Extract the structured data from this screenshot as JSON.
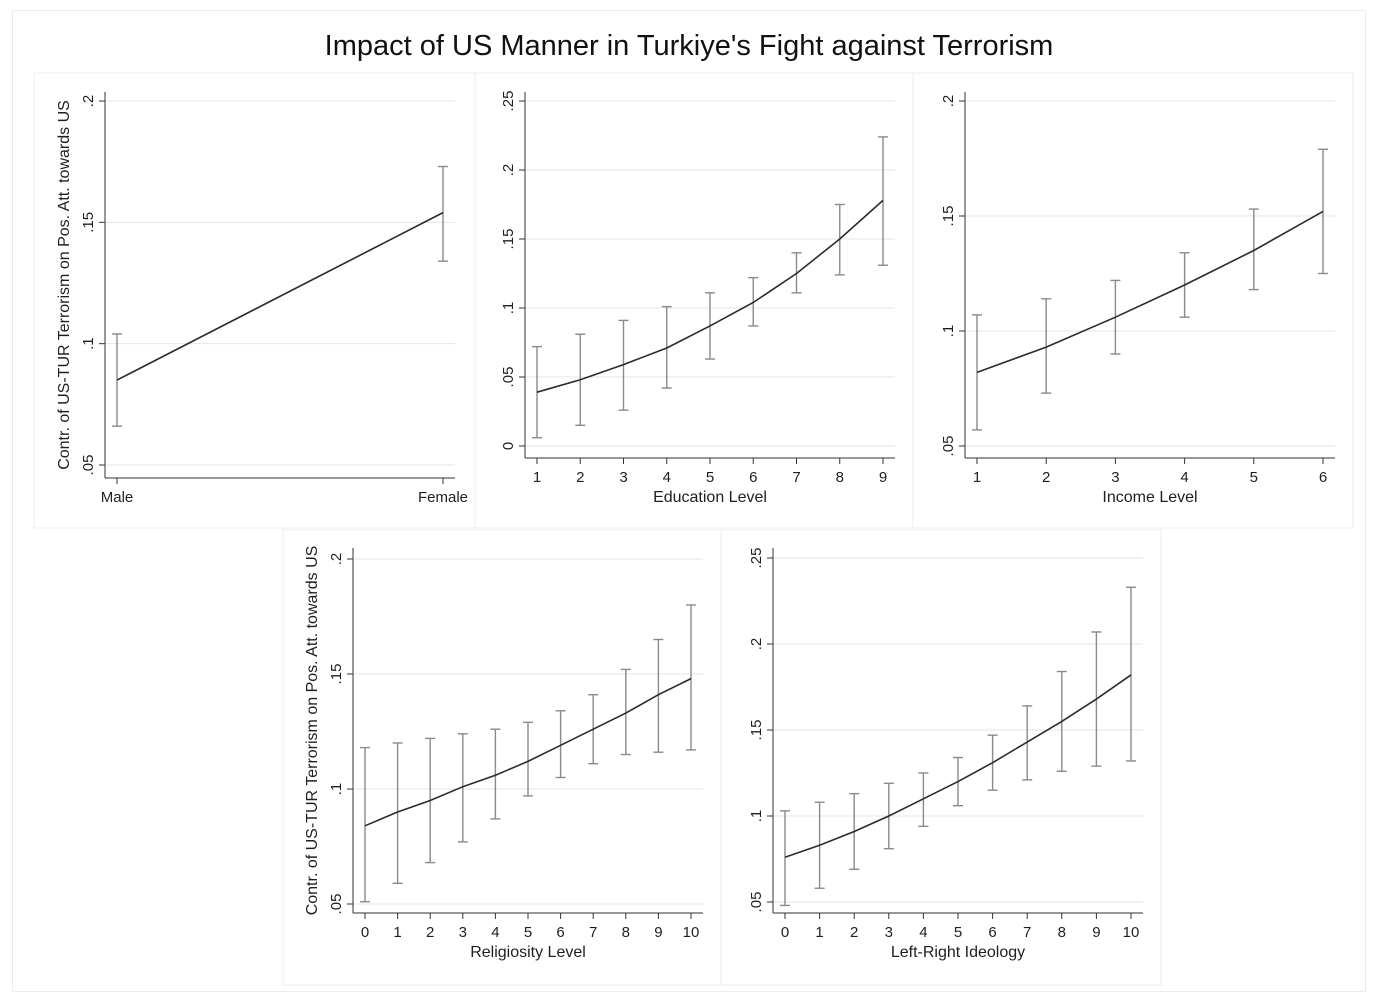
{
  "figure": {
    "title": "Impact of US Manner in Turkiye's Fight against Terrorism"
  },
  "chart_data": [
    {
      "type": "line",
      "xlabel": "",
      "ylabel": "Contr. of US-TUR Terrorism on Pos. Att. towards US",
      "categories": [
        "Male",
        "Female"
      ],
      "x": [
        0,
        1
      ],
      "xticks": [
        {
          "value": 0,
          "label": "Male"
        },
        {
          "value": 1,
          "label": "Female"
        }
      ],
      "ylim": [
        0.05,
        0.2
      ],
      "yticks": [
        {
          "value": 0.05,
          "label": ".05"
        },
        {
          "value": 0.1,
          "label": ".1"
        },
        {
          "value": 0.15,
          "label": ".15"
        },
        {
          "value": 0.2,
          "label": ".2"
        }
      ],
      "y": [
        0.085,
        0.154
      ],
      "ci_low": [
        0.066,
        0.134
      ],
      "ci_high": [
        0.104,
        0.173
      ],
      "grid": true,
      "line_color": "#2b2b2b",
      "grid_color": "#e6e6e6"
    },
    {
      "type": "line",
      "xlabel": "Education Level",
      "ylabel": "",
      "x": [
        1,
        2,
        3,
        4,
        5,
        6,
        7,
        8,
        9
      ],
      "xticks": [
        {
          "value": 1,
          "label": "1"
        },
        {
          "value": 2,
          "label": "2"
        },
        {
          "value": 3,
          "label": "3"
        },
        {
          "value": 4,
          "label": "4"
        },
        {
          "value": 5,
          "label": "5"
        },
        {
          "value": 6,
          "label": "6"
        },
        {
          "value": 7,
          "label": "7"
        },
        {
          "value": 8,
          "label": "8"
        },
        {
          "value": 9,
          "label": "9"
        }
      ],
      "ylim": [
        0,
        0.25
      ],
      "yticks": [
        {
          "value": 0,
          "label": "0"
        },
        {
          "value": 0.05,
          "label": ".05"
        },
        {
          "value": 0.1,
          "label": ".1"
        },
        {
          "value": 0.15,
          "label": ".15"
        },
        {
          "value": 0.2,
          "label": ".2"
        },
        {
          "value": 0.25,
          "label": ".25"
        }
      ],
      "y": [
        0.039,
        0.048,
        0.059,
        0.071,
        0.087,
        0.104,
        0.125,
        0.15,
        0.178
      ],
      "ci_low": [
        0.006,
        0.015,
        0.026,
        0.042,
        0.063,
        0.087,
        0.111,
        0.124,
        0.131
      ],
      "ci_high": [
        0.072,
        0.081,
        0.091,
        0.101,
        0.111,
        0.122,
        0.14,
        0.175,
        0.224
      ],
      "grid": true,
      "line_color": "#2b2b2b",
      "grid_color": "#e6e6e6"
    },
    {
      "type": "line",
      "xlabel": "Income Level",
      "ylabel": "",
      "x": [
        1,
        2,
        3,
        4,
        5,
        6
      ],
      "xticks": [
        {
          "value": 1,
          "label": "1"
        },
        {
          "value": 2,
          "label": "2"
        },
        {
          "value": 3,
          "label": "3"
        },
        {
          "value": 4,
          "label": "4"
        },
        {
          "value": 5,
          "label": "5"
        },
        {
          "value": 6,
          "label": "6"
        }
      ],
      "ylim": [
        0.05,
        0.2
      ],
      "yticks": [
        {
          "value": 0.05,
          "label": ".05"
        },
        {
          "value": 0.1,
          "label": ".1"
        },
        {
          "value": 0.15,
          "label": ".15"
        },
        {
          "value": 0.2,
          "label": ".2"
        }
      ],
      "y": [
        0.082,
        0.093,
        0.106,
        0.12,
        0.135,
        0.152
      ],
      "ci_low": [
        0.057,
        0.073,
        0.09,
        0.106,
        0.118,
        0.125
      ],
      "ci_high": [
        0.107,
        0.114,
        0.122,
        0.134,
        0.153,
        0.179
      ],
      "grid": true,
      "line_color": "#2b2b2b",
      "grid_color": "#e6e6e6"
    },
    {
      "type": "line",
      "xlabel": "Religiosity Level",
      "ylabel": "Contr. of US-TUR Terrorism on Pos. Att. towards US",
      "x": [
        0,
        1,
        2,
        3,
        4,
        5,
        6,
        7,
        8,
        9,
        10
      ],
      "xticks": [
        {
          "value": 0,
          "label": "0"
        },
        {
          "value": 1,
          "label": "1"
        },
        {
          "value": 2,
          "label": "2"
        },
        {
          "value": 3,
          "label": "3"
        },
        {
          "value": 4,
          "label": "4"
        },
        {
          "value": 5,
          "label": "5"
        },
        {
          "value": 6,
          "label": "6"
        },
        {
          "value": 7,
          "label": "7"
        },
        {
          "value": 8,
          "label": "8"
        },
        {
          "value": 9,
          "label": "9"
        },
        {
          "value": 10,
          "label": "10"
        }
      ],
      "ylim": [
        0.05,
        0.2
      ],
      "yticks": [
        {
          "value": 0.05,
          "label": ".05"
        },
        {
          "value": 0.1,
          "label": ".1"
        },
        {
          "value": 0.15,
          "label": ".15"
        },
        {
          "value": 0.2,
          "label": ".2"
        }
      ],
      "y": [
        0.084,
        0.09,
        0.095,
        0.101,
        0.106,
        0.112,
        0.119,
        0.126,
        0.133,
        0.141,
        0.148
      ],
      "ci_low": [
        0.051,
        0.059,
        0.068,
        0.077,
        0.087,
        0.097,
        0.105,
        0.111,
        0.115,
        0.116,
        0.117
      ],
      "ci_high": [
        0.118,
        0.12,
        0.122,
        0.124,
        0.126,
        0.129,
        0.134,
        0.141,
        0.152,
        0.165,
        0.18
      ],
      "grid": true,
      "line_color": "#2b2b2b",
      "grid_color": "#e6e6e6"
    },
    {
      "type": "line",
      "xlabel": "Left-Right Ideology",
      "ylabel": "",
      "x": [
        0,
        1,
        2,
        3,
        4,
        5,
        6,
        7,
        8,
        9,
        10
      ],
      "xticks": [
        {
          "value": 0,
          "label": "0"
        },
        {
          "value": 1,
          "label": "1"
        },
        {
          "value": 2,
          "label": "2"
        },
        {
          "value": 3,
          "label": "3"
        },
        {
          "value": 4,
          "label": "4"
        },
        {
          "value": 5,
          "label": "5"
        },
        {
          "value": 6,
          "label": "6"
        },
        {
          "value": 7,
          "label": "7"
        },
        {
          "value": 8,
          "label": "8"
        },
        {
          "value": 9,
          "label": "9"
        },
        {
          "value": 10,
          "label": "10"
        }
      ],
      "ylim": [
        0.05,
        0.25
      ],
      "yticks": [
        {
          "value": 0.05,
          "label": ".05"
        },
        {
          "value": 0.1,
          "label": ".1"
        },
        {
          "value": 0.15,
          "label": ".15"
        },
        {
          "value": 0.2,
          "label": ".2"
        },
        {
          "value": 0.25,
          "label": ".25"
        }
      ],
      "y": [
        0.076,
        0.083,
        0.091,
        0.1,
        0.11,
        0.12,
        0.131,
        0.143,
        0.155,
        0.168,
        0.182
      ],
      "ci_low": [
        0.048,
        0.058,
        0.069,
        0.081,
        0.094,
        0.106,
        0.115,
        0.121,
        0.126,
        0.129,
        0.132
      ],
      "ci_high": [
        0.103,
        0.108,
        0.113,
        0.119,
        0.125,
        0.134,
        0.147,
        0.164,
        0.184,
        0.207,
        0.233
      ],
      "grid": true,
      "line_color": "#2b2b2b",
      "grid_color": "#e6e6e6"
    }
  ]
}
